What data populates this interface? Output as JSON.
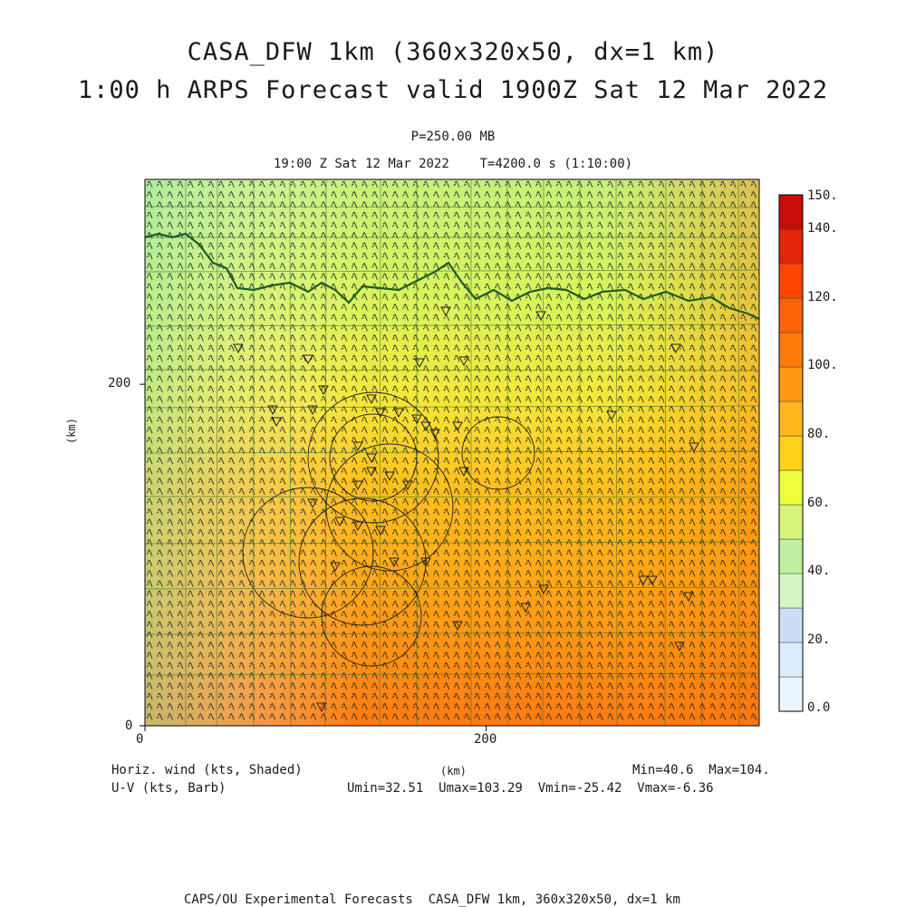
{
  "header": {
    "title_line1": "CASA_DFW 1km (360x320x50, dx=1 km)",
    "title_line2": "1:00 h ARPS Forecast valid 1900Z Sat 12 Mar 2022",
    "level": "P=250.00 MB",
    "time_line": "19:00 Z Sat 12 Mar 2022    T=4200.0 s (1:10:00)"
  },
  "footer": {
    "field_label": "Horiz. wind (kts, Shaded)",
    "vector_label": "U-V (kts, Barb)",
    "xunit": "(km)",
    "minmax": "Min=40.6  Max=104.",
    "uv_stats": "Umin=32.51  Umax=103.29  Vmin=-25.42  Vmax=-6.36",
    "credit": "CAPS/OU Experimental Forecasts  CASA_DFW 1km, 360x320x50, dx=1 km"
  },
  "chart_data": {
    "type": "heatmap",
    "xlabel": "(km)",
    "ylabel": "(km)",
    "xlim": [
      0,
      360
    ],
    "ylim": [
      0,
      320
    ],
    "x_ticks": [
      "0",
      "200"
    ],
    "y_ticks": [
      "0",
      "200"
    ],
    "field": "Horizontal wind speed (kts)",
    "field_min": 40.6,
    "field_max": 104,
    "u_min": 32.51,
    "u_max": 103.29,
    "v_min": -25.42,
    "v_max": -6.36,
    "colorbar": {
      "labels": [
        "0.0",
        "20.",
        "40.",
        "60.",
        "80.",
        "100.",
        "120.",
        "140.",
        "150."
      ],
      "levels": [
        0,
        10,
        20,
        30,
        40,
        50,
        60,
        70,
        80,
        90,
        100,
        110,
        120,
        130,
        140,
        150
      ],
      "colors": [
        "#eaf6ff",
        "#dcecfc",
        "#cdddf6",
        "#d3f7c4",
        "#bff0a0",
        "#d6f57a",
        "#ecff3a",
        "#ffd21a",
        "#ffb81e",
        "#ff9a12",
        "#ff7b0a",
        "#ff6207",
        "#ff4404",
        "#e3230a",
        "#c80c0a"
      ]
    },
    "speed_field_samples": [
      {
        "x": 0,
        "y": 320,
        "speed": 52
      },
      {
        "x": 360,
        "y": 320,
        "speed": 62
      },
      {
        "x": 0,
        "y": 200,
        "speed": 54
      },
      {
        "x": 360,
        "y": 200,
        "speed": 82
      },
      {
        "x": 0,
        "y": 100,
        "speed": 86
      },
      {
        "x": 180,
        "y": 100,
        "speed": 90
      },
      {
        "x": 360,
        "y": 100,
        "speed": 96
      },
      {
        "x": 0,
        "y": 0,
        "speed": 96
      },
      {
        "x": 360,
        "y": 0,
        "speed": 104
      }
    ]
  }
}
